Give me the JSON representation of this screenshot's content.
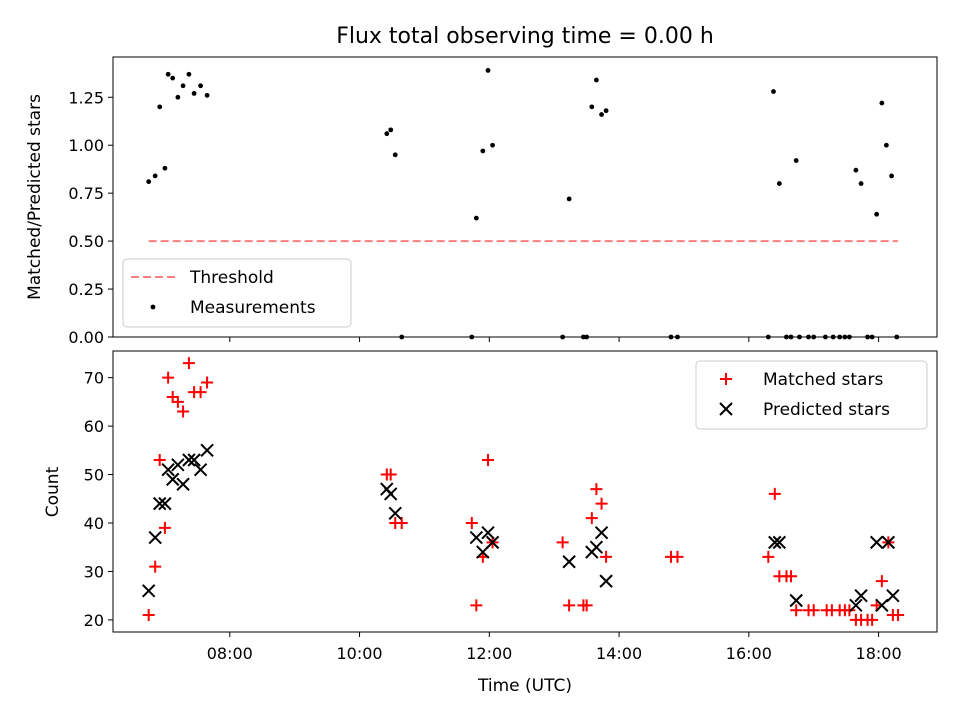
{
  "chart_data": [
    {
      "type": "scatter",
      "title": "Flux total observing time = 0.00 h",
      "xlabel": "",
      "ylabel": "Matched/Predicted stars",
      "xlim": [
        6.2,
        18.9
      ],
      "ylim": [
        0.0,
        1.46
      ],
      "yticks": [
        "0.00",
        "0.25",
        "0.50",
        "0.75",
        "1.00",
        "1.25"
      ],
      "grid": false,
      "legend_position": "lower-left",
      "threshold": {
        "name": "Threshold",
        "y": 0.5,
        "x_range": [
          6.75,
          18.3
        ],
        "color": "#ff7f7f",
        "style": "dashed"
      },
      "series": [
        {
          "name": "Measurements",
          "color": "#000000",
          "marker": "dot",
          "points": [
            [
              6.75,
              0.81
            ],
            [
              6.85,
              0.84
            ],
            [
              6.92,
              1.2
            ],
            [
              7.0,
              0.88
            ],
            [
              7.05,
              1.37
            ],
            [
              7.12,
              1.35
            ],
            [
              7.2,
              1.25
            ],
            [
              7.28,
              1.31
            ],
            [
              7.37,
              1.37
            ],
            [
              7.45,
              1.27
            ],
            [
              7.55,
              1.31
            ],
            [
              7.65,
              1.26
            ],
            [
              10.42,
              1.06
            ],
            [
              10.48,
              1.08
            ],
            [
              10.55,
              0.95
            ],
            [
              10.65,
              0.0
            ],
            [
              11.73,
              0.0
            ],
            [
              11.8,
              0.62
            ],
            [
              11.9,
              0.97
            ],
            [
              11.98,
              1.39
            ],
            [
              12.05,
              1.0
            ],
            [
              13.13,
              0.0
            ],
            [
              13.23,
              0.72
            ],
            [
              13.45,
              0.0
            ],
            [
              13.5,
              0.0
            ],
            [
              13.58,
              1.2
            ],
            [
              13.65,
              1.34
            ],
            [
              13.73,
              1.16
            ],
            [
              13.8,
              1.18
            ],
            [
              14.8,
              0.0
            ],
            [
              14.9,
              0.0
            ],
            [
              16.3,
              0.0
            ],
            [
              16.38,
              1.28
            ],
            [
              16.47,
              0.8
            ],
            [
              16.58,
              0.0
            ],
            [
              16.65,
              0.0
            ],
            [
              16.73,
              0.92
            ],
            [
              16.78,
              0.0
            ],
            [
              16.92,
              0.0
            ],
            [
              17.0,
              0.0
            ],
            [
              17.18,
              0.0
            ],
            [
              17.3,
              0.0
            ],
            [
              17.4,
              0.0
            ],
            [
              17.48,
              0.0
            ],
            [
              17.55,
              0.0
            ],
            [
              17.65,
              0.87
            ],
            [
              17.73,
              0.8
            ],
            [
              17.83,
              0.0
            ],
            [
              17.9,
              0.0
            ],
            [
              17.97,
              0.64
            ],
            [
              18.05,
              1.22
            ],
            [
              18.12,
              1.0
            ],
            [
              18.2,
              0.84
            ],
            [
              18.28,
              0.0
            ]
          ]
        }
      ]
    },
    {
      "type": "scatter",
      "title": "",
      "xlabel": "Time (UTC)",
      "ylabel": "Count",
      "xlim": [
        6.2,
        18.9
      ],
      "ylim": [
        17.5,
        75.5
      ],
      "xticks": [
        {
          "value": 8,
          "label": "08:00"
        },
        {
          "value": 10,
          "label": "10:00"
        },
        {
          "value": 12,
          "label": "12:00"
        },
        {
          "value": 14,
          "label": "14:00"
        },
        {
          "value": 16,
          "label": "16:00"
        },
        {
          "value": 18,
          "label": "18:00"
        }
      ],
      "yticks": [
        "20",
        "30",
        "40",
        "50",
        "60",
        "70"
      ],
      "grid": false,
      "legend_position": "upper-right",
      "series": [
        {
          "name": "Matched stars",
          "color": "#ff0000",
          "marker": "plus",
          "points": [
            [
              6.75,
              21
            ],
            [
              6.85,
              31
            ],
            [
              6.92,
              53
            ],
            [
              7.0,
              39
            ],
            [
              7.05,
              70
            ],
            [
              7.12,
              66
            ],
            [
              7.2,
              65
            ],
            [
              7.28,
              63
            ],
            [
              7.37,
              73
            ],
            [
              7.45,
              67
            ],
            [
              7.55,
              67
            ],
            [
              7.65,
              69
            ],
            [
              10.42,
              50
            ],
            [
              10.48,
              50
            ],
            [
              10.55,
              40
            ],
            [
              10.65,
              40
            ],
            [
              11.73,
              40
            ],
            [
              11.8,
              23
            ],
            [
              11.9,
              33
            ],
            [
              11.98,
              53
            ],
            [
              12.05,
              36
            ],
            [
              13.13,
              36
            ],
            [
              13.23,
              23
            ],
            [
              13.45,
              23
            ],
            [
              13.5,
              23
            ],
            [
              13.58,
              41
            ],
            [
              13.65,
              47
            ],
            [
              13.73,
              44
            ],
            [
              13.8,
              33
            ],
            [
              14.8,
              33
            ],
            [
              14.9,
              33
            ],
            [
              16.3,
              33
            ],
            [
              16.4,
              46
            ],
            [
              16.47,
              29
            ],
            [
              16.58,
              29
            ],
            [
              16.65,
              29
            ],
            [
              16.73,
              22
            ],
            [
              16.92,
              22
            ],
            [
              17.0,
              22
            ],
            [
              17.2,
              22
            ],
            [
              17.28,
              22
            ],
            [
              17.4,
              22
            ],
            [
              17.48,
              22
            ],
            [
              17.55,
              22
            ],
            [
              17.65,
              20
            ],
            [
              17.73,
              20
            ],
            [
              17.83,
              20
            ],
            [
              17.9,
              20
            ],
            [
              17.97,
              23
            ],
            [
              18.05,
              28
            ],
            [
              18.15,
              36
            ],
            [
              18.22,
              21
            ],
            [
              18.3,
              21
            ]
          ]
        },
        {
          "name": "Predicted stars",
          "color": "#000000",
          "marker": "x",
          "points": [
            [
              6.75,
              26
            ],
            [
              6.85,
              37
            ],
            [
              6.92,
              44
            ],
            [
              7.0,
              44
            ],
            [
              7.05,
              51
            ],
            [
              7.12,
              49
            ],
            [
              7.2,
              52
            ],
            [
              7.28,
              48
            ],
            [
              7.37,
              53
            ],
            [
              7.45,
              53
            ],
            [
              7.55,
              51
            ],
            [
              7.65,
              55
            ],
            [
              10.42,
              47
            ],
            [
              10.48,
              46
            ],
            [
              10.55,
              42
            ],
            [
              11.8,
              37
            ],
            [
              11.9,
              34
            ],
            [
              11.98,
              38
            ],
            [
              12.05,
              36
            ],
            [
              13.23,
              32
            ],
            [
              13.58,
              34
            ],
            [
              13.65,
              35
            ],
            [
              13.73,
              38
            ],
            [
              13.8,
              28
            ],
            [
              16.4,
              36
            ],
            [
              16.47,
              36
            ],
            [
              16.73,
              24
            ],
            [
              17.65,
              23
            ],
            [
              17.73,
              25
            ],
            [
              17.97,
              36
            ],
            [
              18.05,
              23
            ],
            [
              18.15,
              36
            ],
            [
              18.22,
              25
            ]
          ]
        }
      ]
    }
  ]
}
